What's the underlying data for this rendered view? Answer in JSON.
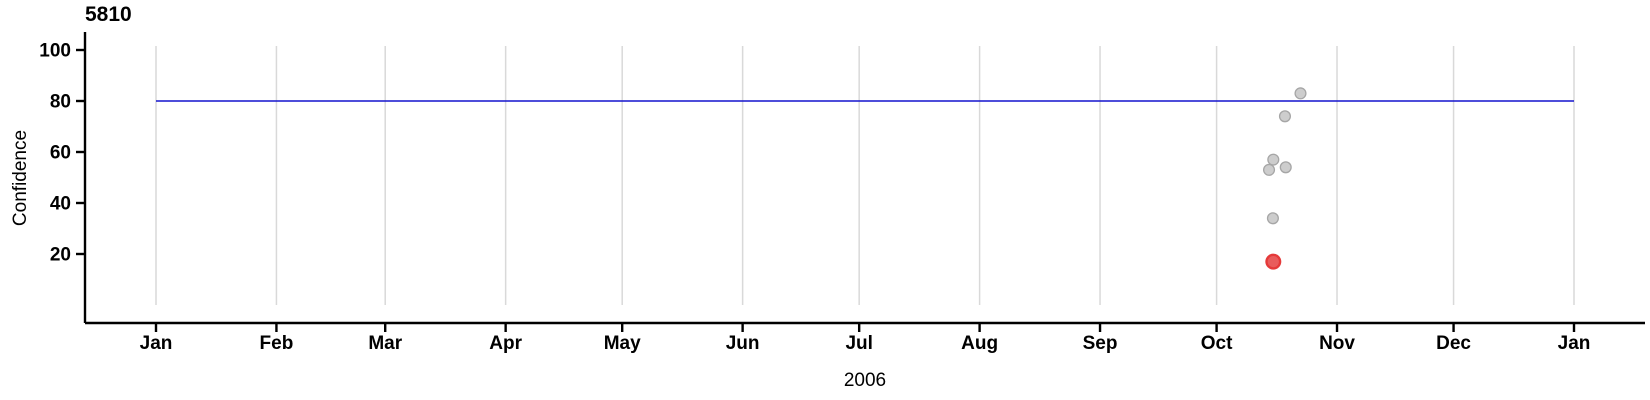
{
  "chart_data": {
    "type": "scatter",
    "title": "5810",
    "xlabel": "2006",
    "ylabel": "Confidence",
    "x_axis": {
      "unit": "month",
      "tick_labels": [
        "Jan",
        "Feb",
        "Mar",
        "Apr",
        "May",
        "Jun",
        "Jul",
        "Aug",
        "Sep",
        "Oct",
        "Nov",
        "Dec",
        "Jan"
      ],
      "year": "2006",
      "range_days": [
        0,
        365
      ]
    },
    "y_axis": {
      "ticks": [
        20,
        40,
        60,
        80,
        100
      ],
      "ylim": [
        0,
        106
      ],
      "grid": "vertical-monthly-only"
    },
    "reference_line": {
      "y": 80,
      "orientation": "horizontal"
    },
    "legend": "none",
    "points": [
      {
        "date": "Oct 22",
        "day_of_year": 294.6,
        "confidence": 83,
        "highlighted": false
      },
      {
        "date": "Oct 18",
        "day_of_year": 290.6,
        "confidence": 74,
        "highlighted": false
      },
      {
        "date": "Oct 15",
        "day_of_year": 287.6,
        "confidence": 57,
        "highlighted": false
      },
      {
        "date": "Oct 14",
        "day_of_year": 286.5,
        "confidence": 53,
        "highlighted": false
      },
      {
        "date": "Oct 18",
        "day_of_year": 290.8,
        "confidence": 54,
        "highlighted": false
      },
      {
        "date": "Oct 15",
        "day_of_year": 287.5,
        "confidence": 34,
        "highlighted": false
      },
      {
        "date": "Oct 15",
        "day_of_year": 287.6,
        "confidence": 17,
        "highlighted": true
      }
    ],
    "colors": {
      "background": "#ffffff",
      "axis": "#000000",
      "text": "#000000",
      "grid": "#d9d9d9",
      "reference_line": "#1414cd",
      "point_fill": "#cdcdcd",
      "point_stroke": "#a6a6a6",
      "highlight_fill": "#e95c5c",
      "highlight_stroke": "#e53a3a"
    }
  }
}
